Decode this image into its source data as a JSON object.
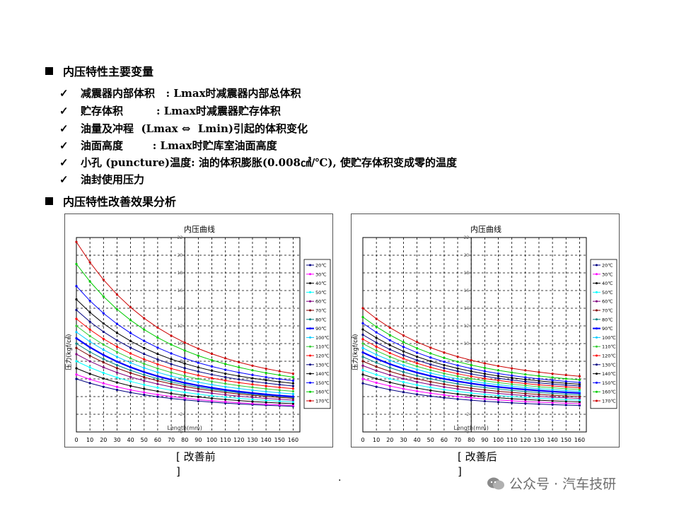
{
  "sections": [
    {
      "title": "内压特性主要变量"
    },
    {
      "title": "内压特性改善效果分析"
    }
  ],
  "check_mark": "✓",
  "bullets": [
    "减震器内部体积   : Lmax时减震器内部总体积",
    "贮存体积         : Lmax时减震器贮存体积",
    "油量及冲程  (Lmax ⇔  Lmin)引起的体积变化",
    "油面高度        : Lmax时贮库室油面高度",
    "小孔 (puncture)温度: 油的体积膨胀(0.008㎤/℃), 使贮存体积变成零的温度",
    "油封使用压力"
  ],
  "captions": {
    "before": "[ 改善前\n]",
    "after": "[ 改善后\n]"
  },
  "dot": ".",
  "watermark": "公众号 · 汽车技研",
  "chart_data": [
    {
      "type": "line",
      "title": "内压曲线",
      "xlabel": "Length(mm)",
      "ylabel": "压力(kgf/㎠)",
      "x": [
        0,
        10,
        20,
        30,
        40,
        50,
        60,
        70,
        80,
        90,
        100,
        110,
        120,
        130,
        140,
        150,
        160
      ],
      "xlim": [
        0,
        165
      ],
      "ylim": [
        0,
        22
      ],
      "yticks": [
        0,
        2,
        4,
        6,
        8,
        10,
        12,
        14,
        16,
        18,
        20,
        22
      ],
      "grid": true,
      "legend": "right",
      "series": [
        {
          "name": "20℃",
          "color": "#000080",
          "y0": 6.0,
          "y1": 2.9
        },
        {
          "name": "30℃",
          "color": "#ff00ff",
          "y0": 6.5,
          "y1": 3.0
        },
        {
          "name": "40℃",
          "color": "#000000",
          "y0": 7.2,
          "y1": 3.2
        },
        {
          "name": "50℃",
          "color": "#00ffff",
          "y0": 8.0,
          "y1": 3.4
        },
        {
          "name": "60℃",
          "color": "#800080",
          "y0": 8.8,
          "y1": 3.6
        },
        {
          "name": "70℃",
          "color": "#800000",
          "y0": 9.5,
          "y1": 3.8
        },
        {
          "name": "80℃",
          "color": "#008080",
          "y0": 10.0,
          "y1": 3.9
        },
        {
          "name": "90℃",
          "color": "#0000ff",
          "y0": 10.6,
          "y1": 4.0
        },
        {
          "name": "100℃",
          "color": "#00ccff",
          "y0": 11.3,
          "y1": 4.3
        },
        {
          "name": "110℃",
          "color": "#33cc33",
          "y0": 12.0,
          "y1": 4.6
        },
        {
          "name": "120℃",
          "color": "#ff0000",
          "y0": 12.8,
          "y1": 4.9
        },
        {
          "name": "130℃",
          "color": "#000080",
          "y0": 13.8,
          "y1": 5.2
        },
        {
          "name": "140℃",
          "color": "#000000",
          "y0": 15.0,
          "y1": 5.5
        },
        {
          "name": "150℃",
          "color": "#0000ff",
          "y0": 16.5,
          "y1": 5.8
        },
        {
          "name": "160℃",
          "color": "#00cc00",
          "y0": 19.0,
          "y1": 6.2
        },
        {
          "name": "170℃",
          "color": "#cc0000",
          "y0": 21.5,
          "y1": 6.6
        }
      ]
    },
    {
      "type": "line",
      "title": "内压曲线",
      "xlabel": "Length(mm)",
      "ylabel": "压力(kgf/㎠)",
      "x": [
        0,
        10,
        20,
        30,
        40,
        50,
        60,
        70,
        80,
        90,
        100,
        110,
        120,
        130,
        140,
        150,
        160
      ],
      "xlim": [
        0,
        165
      ],
      "ylim": [
        0,
        22
      ],
      "yticks": [
        0,
        2,
        4,
        6,
        8,
        10,
        12,
        14,
        16,
        18,
        20,
        22
      ],
      "grid": true,
      "legend": "right",
      "series": [
        {
          "name": "20℃",
          "color": "#000080",
          "y0": 5.5,
          "y1": 3.0
        },
        {
          "name": "30℃",
          "color": "#ff00ff",
          "y0": 6.0,
          "y1": 3.2
        },
        {
          "name": "40℃",
          "color": "#000000",
          "y0": 6.5,
          "y1": 3.4
        },
        {
          "name": "50℃",
          "color": "#00ffff",
          "y0": 7.0,
          "y1": 3.6
        },
        {
          "name": "60℃",
          "color": "#800080",
          "y0": 7.5,
          "y1": 3.8
        },
        {
          "name": "70℃",
          "color": "#800000",
          "y0": 8.0,
          "y1": 4.0
        },
        {
          "name": "80℃",
          "color": "#008080",
          "y0": 8.5,
          "y1": 4.2
        },
        {
          "name": "90℃",
          "color": "#0000ff",
          "y0": 9.0,
          "y1": 4.4
        },
        {
          "name": "100℃",
          "color": "#00ccff",
          "y0": 9.5,
          "y1": 4.6
        },
        {
          "name": "110℃",
          "color": "#33cc33",
          "y0": 10.0,
          "y1": 4.8
        },
        {
          "name": "120℃",
          "color": "#ff0000",
          "y0": 10.5,
          "y1": 5.0
        },
        {
          "name": "130℃",
          "color": "#000080",
          "y0": 11.0,
          "y1": 5.2
        },
        {
          "name": "140℃",
          "color": "#000000",
          "y0": 11.6,
          "y1": 5.4
        },
        {
          "name": "150℃",
          "color": "#0000ff",
          "y0": 12.3,
          "y1": 5.6
        },
        {
          "name": "160℃",
          "color": "#00cc00",
          "y0": 13.0,
          "y1": 5.9
        },
        {
          "name": "170℃",
          "color": "#cc0000",
          "y0": 14.0,
          "y1": 6.3
        }
      ]
    }
  ]
}
